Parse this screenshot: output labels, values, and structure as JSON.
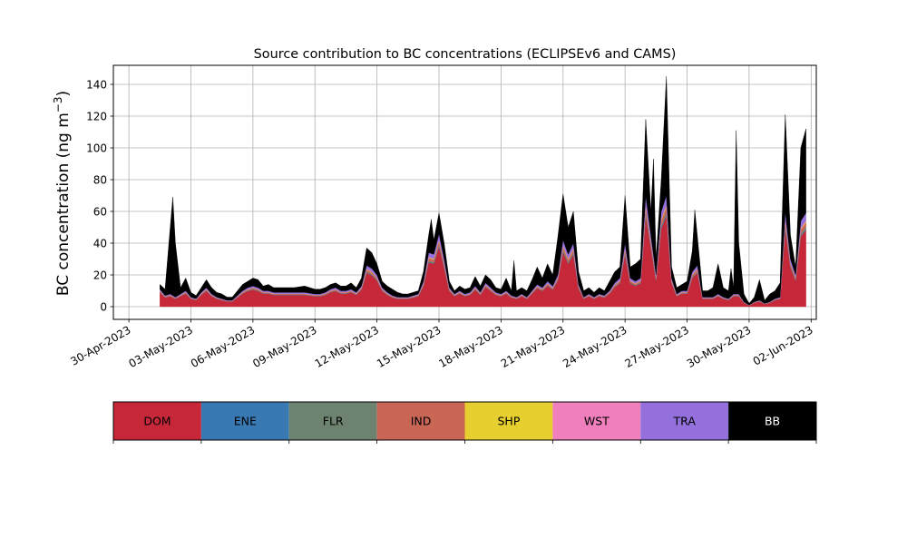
{
  "chart_data": {
    "type": "area",
    "stacked": true,
    "title": "Source contribution to BC concentrations (ECLIPSEv6 and CAMS)",
    "ylabel": "BC concentration (ng m",
    "ylabel_superscript": "−3",
    "ylabel_suffix": ")",
    "ylim": [
      -8,
      152
    ],
    "yticks": [
      0,
      20,
      40,
      60,
      80,
      100,
      120,
      140
    ],
    "xlim": [
      "2023-04-29T06:00",
      "2023-06-02T06:00"
    ],
    "xticks": [
      "30-Apr-2023",
      "03-May-2023",
      "06-May-2023",
      "09-May-2023",
      "12-May-2023",
      "15-May-2023",
      "18-May-2023",
      "21-May-2023",
      "24-May-2023",
      "27-May-2023",
      "30-May-2023",
      "02-Jun-2023"
    ],
    "grid": true,
    "series_order": [
      "DOM",
      "ENE",
      "FLR",
      "IND",
      "SHP",
      "WST",
      "TRA",
      "BB"
    ],
    "series_colors": {
      "DOM": "#c6283a",
      "ENE": "#3878b3",
      "FLR": "#6e8270",
      "IND": "#c96656",
      "SHP": "#e6cf2e",
      "WST": "#ef7fbd",
      "TRA": "#9370db",
      "BB": "#000000"
    },
    "series_fractions_of_anthropogenic": {
      "DOM": 0.82,
      "ENE": 0.01,
      "FLR": 0.02,
      "IND": 0.05,
      "SHP": 0.01,
      "WST": 0.01,
      "TRA": 0.08
    },
    "anthropogenic_total_points": [
      [
        "2023-05-01T12:00",
        11
      ],
      [
        "2023-05-01T18:00",
        7
      ],
      [
        "2023-05-02T00:00",
        8
      ],
      [
        "2023-05-02T06:00",
        6
      ],
      [
        "2023-05-02T12:00",
        8
      ],
      [
        "2023-05-02T18:00",
        10
      ],
      [
        "2023-05-03T00:00",
        6
      ],
      [
        "2023-05-03T06:00",
        5
      ],
      [
        "2023-05-03T12:00",
        9
      ],
      [
        "2023-05-03T18:00",
        12
      ],
      [
        "2023-05-04T00:00",
        8
      ],
      [
        "2023-05-04T06:00",
        6
      ],
      [
        "2023-05-04T12:00",
        5
      ],
      [
        "2023-05-04T18:00",
        4
      ],
      [
        "2023-05-05T00:00",
        4
      ],
      [
        "2023-05-05T06:00",
        7
      ],
      [
        "2023-05-05T12:00",
        10
      ],
      [
        "2023-05-05T18:00",
        12
      ],
      [
        "2023-05-06T00:00",
        13
      ],
      [
        "2023-05-06T06:00",
        12
      ],
      [
        "2023-05-06T12:00",
        10
      ],
      [
        "2023-05-06T18:00",
        10
      ],
      [
        "2023-05-07T00:00",
        9
      ],
      [
        "2023-05-07T12:00",
        9
      ],
      [
        "2023-05-08T00:00",
        9
      ],
      [
        "2023-05-08T12:00",
        9
      ],
      [
        "2023-05-09T00:00",
        8
      ],
      [
        "2023-05-09T06:00",
        8
      ],
      [
        "2023-05-09T12:00",
        9
      ],
      [
        "2023-05-09T18:00",
        11
      ],
      [
        "2023-05-10T00:00",
        12
      ],
      [
        "2023-05-10T06:00",
        10
      ],
      [
        "2023-05-10T12:00",
        10
      ],
      [
        "2023-05-10T18:00",
        11
      ],
      [
        "2023-05-11T00:00",
        9
      ],
      [
        "2023-05-11T06:00",
        13
      ],
      [
        "2023-05-11T12:00",
        26
      ],
      [
        "2023-05-11T18:00",
        24
      ],
      [
        "2023-05-12T00:00",
        20
      ],
      [
        "2023-05-12T06:00",
        12
      ],
      [
        "2023-05-12T12:00",
        9
      ],
      [
        "2023-05-12T18:00",
        7
      ],
      [
        "2023-05-13T00:00",
        6
      ],
      [
        "2023-05-13T06:00",
        6
      ],
      [
        "2023-05-13T12:00",
        6
      ],
      [
        "2023-05-13T18:00",
        7
      ],
      [
        "2023-05-14T00:00",
        8
      ],
      [
        "2023-05-14T06:00",
        16
      ],
      [
        "2023-05-14T12:00",
        34
      ],
      [
        "2023-05-14T18:00",
        33
      ],
      [
        "2023-05-15T00:00",
        46
      ],
      [
        "2023-05-15T06:00",
        30
      ],
      [
        "2023-05-15T12:00",
        12
      ],
      [
        "2023-05-15T18:00",
        8
      ],
      [
        "2023-05-16T00:00",
        10
      ],
      [
        "2023-05-16T06:00",
        8
      ],
      [
        "2023-05-16T12:00",
        9
      ],
      [
        "2023-05-16T18:00",
        13
      ],
      [
        "2023-05-17T00:00",
        9
      ],
      [
        "2023-05-17T06:00",
        15
      ],
      [
        "2023-05-17T12:00",
        12
      ],
      [
        "2023-05-17T18:00",
        9
      ],
      [
        "2023-05-18T00:00",
        8
      ],
      [
        "2023-05-18T06:00",
        10
      ],
      [
        "2023-05-18T12:00",
        7
      ],
      [
        "2023-05-18T18:00",
        6
      ],
      [
        "2023-05-19T00:00",
        8
      ],
      [
        "2023-05-19T06:00",
        6
      ],
      [
        "2023-05-19T12:00",
        10
      ],
      [
        "2023-05-19T18:00",
        14
      ],
      [
        "2023-05-20T00:00",
        12
      ],
      [
        "2023-05-20T06:00",
        16
      ],
      [
        "2023-05-20T12:00",
        13
      ],
      [
        "2023-05-20T18:00",
        20
      ],
      [
        "2023-05-21T00:00",
        42
      ],
      [
        "2023-05-21T06:00",
        33
      ],
      [
        "2023-05-21T12:00",
        40
      ],
      [
        "2023-05-21T18:00",
        14
      ],
      [
        "2023-05-22T00:00",
        6
      ],
      [
        "2023-05-22T06:00",
        8
      ],
      [
        "2023-05-22T12:00",
        6
      ],
      [
        "2023-05-22T18:00",
        8
      ],
      [
        "2023-05-23T00:00",
        7
      ],
      [
        "2023-05-23T06:00",
        10
      ],
      [
        "2023-05-23T12:00",
        15
      ],
      [
        "2023-05-23T18:00",
        18
      ],
      [
        "2023-05-24T00:00",
        40
      ],
      [
        "2023-05-24T06:00",
        18
      ],
      [
        "2023-05-24T12:00",
        16
      ],
      [
        "2023-05-24T18:00",
        18
      ],
      [
        "2023-05-25T00:00",
        70
      ],
      [
        "2023-05-25T06:00",
        45
      ],
      [
        "2023-05-25T12:00",
        20
      ],
      [
        "2023-05-25T18:00",
        60
      ],
      [
        "2023-05-26T00:00",
        70
      ],
      [
        "2023-05-26T06:00",
        18
      ],
      [
        "2023-05-26T12:00",
        8
      ],
      [
        "2023-05-26T18:00",
        10
      ],
      [
        "2023-05-27T00:00",
        10
      ],
      [
        "2023-05-27T06:00",
        22
      ],
      [
        "2023-05-27T12:00",
        26
      ],
      [
        "2023-05-27T18:00",
        6
      ],
      [
        "2023-05-28T00:00",
        6
      ],
      [
        "2023-05-28T06:00",
        6
      ],
      [
        "2023-05-28T12:00",
        8
      ],
      [
        "2023-05-28T18:00",
        6
      ],
      [
        "2023-05-29T00:00",
        5
      ],
      [
        "2023-05-29T06:00",
        8
      ],
      [
        "2023-05-29T12:00",
        8
      ],
      [
        "2023-05-29T18:00",
        3
      ],
      [
        "2023-05-30T00:00",
        1
      ],
      [
        "2023-05-30T06:00",
        3
      ],
      [
        "2023-05-30T12:00",
        4
      ],
      [
        "2023-05-30T18:00",
        2
      ],
      [
        "2023-05-31T00:00",
        3
      ],
      [
        "2023-05-31T06:00",
        5
      ],
      [
        "2023-05-31T12:00",
        6
      ],
      [
        "2023-05-31T18:00",
        60
      ],
      [
        "2023-06-01T00:00",
        30
      ],
      [
        "2023-06-01T06:00",
        20
      ],
      [
        "2023-06-01T12:00",
        54
      ],
      [
        "2023-06-01T18:00",
        59
      ]
    ],
    "total_points": [
      [
        "2023-05-01T12:00",
        14
      ],
      [
        "2023-05-01T18:00",
        11
      ],
      [
        "2023-05-02T00:00",
        50
      ],
      [
        "2023-05-02T03:00",
        69
      ],
      [
        "2023-05-02T06:00",
        40
      ],
      [
        "2023-05-02T12:00",
        12
      ],
      [
        "2023-05-02T18:00",
        18
      ],
      [
        "2023-05-03T00:00",
        9
      ],
      [
        "2023-05-03T06:00",
        7
      ],
      [
        "2023-05-03T12:00",
        12
      ],
      [
        "2023-05-03T18:00",
        17
      ],
      [
        "2023-05-04T00:00",
        12
      ],
      [
        "2023-05-04T06:00",
        9
      ],
      [
        "2023-05-04T12:00",
        8
      ],
      [
        "2023-05-04T18:00",
        6
      ],
      [
        "2023-05-05T00:00",
        6
      ],
      [
        "2023-05-05T06:00",
        10
      ],
      [
        "2023-05-05T12:00",
        14
      ],
      [
        "2023-05-05T18:00",
        16
      ],
      [
        "2023-05-06T00:00",
        18
      ],
      [
        "2023-05-06T06:00",
        17
      ],
      [
        "2023-05-06T12:00",
        13
      ],
      [
        "2023-05-06T18:00",
        14
      ],
      [
        "2023-05-07T00:00",
        12
      ],
      [
        "2023-05-07T12:00",
        12
      ],
      [
        "2023-05-08T00:00",
        12
      ],
      [
        "2023-05-08T12:00",
        13
      ],
      [
        "2023-05-09T00:00",
        11
      ],
      [
        "2023-05-09T06:00",
        11
      ],
      [
        "2023-05-09T12:00",
        12
      ],
      [
        "2023-05-09T18:00",
        14
      ],
      [
        "2023-05-10T00:00",
        15
      ],
      [
        "2023-05-10T06:00",
        13
      ],
      [
        "2023-05-10T12:00",
        13
      ],
      [
        "2023-05-10T18:00",
        15
      ],
      [
        "2023-05-11T00:00",
        12
      ],
      [
        "2023-05-11T06:00",
        18
      ],
      [
        "2023-05-11T12:00",
        37
      ],
      [
        "2023-05-11T18:00",
        34
      ],
      [
        "2023-05-12T00:00",
        27
      ],
      [
        "2023-05-12T06:00",
        16
      ],
      [
        "2023-05-12T12:00",
        13
      ],
      [
        "2023-05-12T18:00",
        11
      ],
      [
        "2023-05-13T00:00",
        9
      ],
      [
        "2023-05-13T06:00",
        8
      ],
      [
        "2023-05-13T12:00",
        8
      ],
      [
        "2023-05-13T18:00",
        9
      ],
      [
        "2023-05-14T00:00",
        10
      ],
      [
        "2023-05-14T06:00",
        22
      ],
      [
        "2023-05-14T12:00",
        45
      ],
      [
        "2023-05-14T15:00",
        55
      ],
      [
        "2023-05-14T18:00",
        42
      ],
      [
        "2023-05-15T00:00",
        59
      ],
      [
        "2023-05-15T06:00",
        40
      ],
      [
        "2023-05-15T12:00",
        16
      ],
      [
        "2023-05-15T18:00",
        10
      ],
      [
        "2023-05-16T00:00",
        13
      ],
      [
        "2023-05-16T06:00",
        11
      ],
      [
        "2023-05-16T12:00",
        12
      ],
      [
        "2023-05-16T18:00",
        19
      ],
      [
        "2023-05-17T00:00",
        13
      ],
      [
        "2023-05-17T06:00",
        20
      ],
      [
        "2023-05-17T12:00",
        17
      ],
      [
        "2023-05-17T18:00",
        12
      ],
      [
        "2023-05-18T00:00",
        11
      ],
      [
        "2023-05-18T06:00",
        18
      ],
      [
        "2023-05-18T12:00",
        10
      ],
      [
        "2023-05-18T15:00",
        29
      ],
      [
        "2023-05-18T18:00",
        10
      ],
      [
        "2023-05-19T00:00",
        12
      ],
      [
        "2023-05-19T06:00",
        10
      ],
      [
        "2023-05-19T12:00",
        17
      ],
      [
        "2023-05-19T18:00",
        25
      ],
      [
        "2023-05-20T00:00",
        18
      ],
      [
        "2023-05-20T06:00",
        27
      ],
      [
        "2023-05-20T12:00",
        20
      ],
      [
        "2023-05-20T18:00",
        44
      ],
      [
        "2023-05-21T00:00",
        71
      ],
      [
        "2023-05-21T06:00",
        50
      ],
      [
        "2023-05-21T12:00",
        60
      ],
      [
        "2023-05-21T18:00",
        22
      ],
      [
        "2023-05-22T00:00",
        10
      ],
      [
        "2023-05-22T06:00",
        12
      ],
      [
        "2023-05-22T12:00",
        9
      ],
      [
        "2023-05-22T18:00",
        12
      ],
      [
        "2023-05-23T00:00",
        10
      ],
      [
        "2023-05-23T06:00",
        16
      ],
      [
        "2023-05-23T12:00",
        22
      ],
      [
        "2023-05-23T18:00",
        25
      ],
      [
        "2023-05-24T00:00",
        70
      ],
      [
        "2023-05-24T06:00",
        25
      ],
      [
        "2023-05-24T12:00",
        27
      ],
      [
        "2023-05-24T18:00",
        30
      ],
      [
        "2023-05-25T00:00",
        118
      ],
      [
        "2023-05-25T06:00",
        60
      ],
      [
        "2023-05-25T09:00",
        93
      ],
      [
        "2023-05-25T12:00",
        30
      ],
      [
        "2023-05-25T18:00",
        80
      ],
      [
        "2023-05-26T00:00",
        145
      ],
      [
        "2023-05-26T06:00",
        25
      ],
      [
        "2023-05-26T12:00",
        12
      ],
      [
        "2023-05-26T18:00",
        14
      ],
      [
        "2023-05-27T00:00",
        16
      ],
      [
        "2023-05-27T06:00",
        35
      ],
      [
        "2023-05-27T09:00",
        61
      ],
      [
        "2023-05-27T18:00",
        10
      ],
      [
        "2023-05-28T00:00",
        10
      ],
      [
        "2023-05-28T06:00",
        12
      ],
      [
        "2023-05-28T12:00",
        27
      ],
      [
        "2023-05-28T18:00",
        12
      ],
      [
        "2023-05-29T00:00",
        10
      ],
      [
        "2023-05-29T03:00",
        24
      ],
      [
        "2023-05-29T06:00",
        12
      ],
      [
        "2023-05-29T09:00",
        111
      ],
      [
        "2023-05-29T12:00",
        40
      ],
      [
        "2023-05-29T18:00",
        8
      ],
      [
        "2023-05-30T00:00",
        2
      ],
      [
        "2023-05-30T06:00",
        6
      ],
      [
        "2023-05-30T12:00",
        17
      ],
      [
        "2023-05-30T18:00",
        4
      ],
      [
        "2023-05-31T00:00",
        8
      ],
      [
        "2023-05-31T06:00",
        10
      ],
      [
        "2023-05-31T12:00",
        15
      ],
      [
        "2023-05-31T18:00",
        121
      ],
      [
        "2023-06-01T00:00",
        45
      ],
      [
        "2023-06-01T06:00",
        25
      ],
      [
        "2023-06-01T12:00",
        100
      ],
      [
        "2023-06-01T18:00",
        112
      ]
    ]
  }
}
